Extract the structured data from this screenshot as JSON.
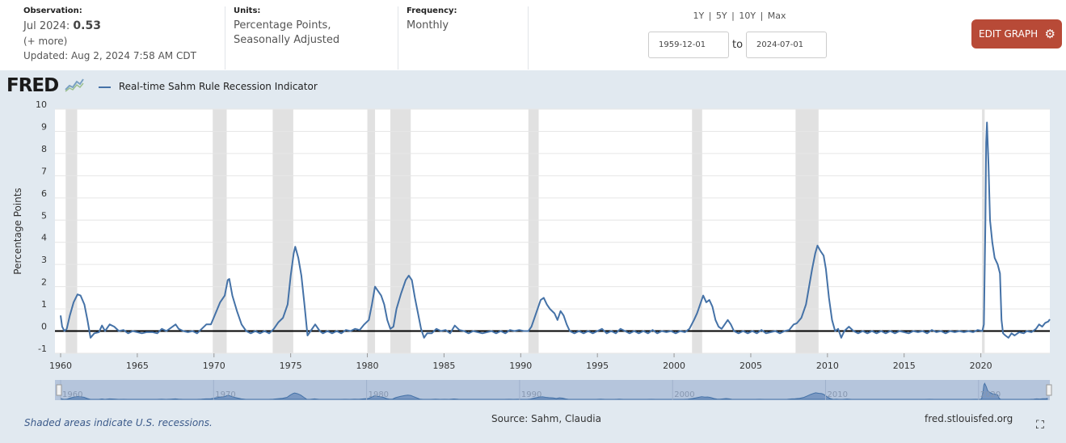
{
  "header": {
    "observation": {
      "label": "Observation:",
      "date": "Jul 2024:",
      "value": "0.53",
      "more": "(+ more)",
      "updated_label": "Updated:",
      "updated_value": "Aug 2, 2024 7:58 AM CDT"
    },
    "units": {
      "label": "Units:",
      "line1": "Percentage Points,",
      "line2": "Seasonally Adjusted"
    },
    "frequency": {
      "label": "Frequency:",
      "value": "Monthly"
    },
    "range_links": [
      "1Y",
      "5Y",
      "10Y",
      "Max"
    ],
    "range_sep": "|",
    "start_date": "1959-12-01",
    "to_label": "to",
    "end_date": "2024-07-01",
    "edit_button": "EDIT GRAPH",
    "edit_icon": "gear-icon"
  },
  "footer": {
    "note": "Shaded areas indicate U.S. recessions.",
    "source": "Source: Sahm, Claudia",
    "site": "fred.stlouisfed.org",
    "fullscreen_icon": "expand-icon"
  },
  "logo": {
    "text": "FRED"
  },
  "chart_data": {
    "type": "line",
    "title": "",
    "ylabel": "Percentage Points",
    "xlabel": "",
    "ylim": [
      -1,
      10
    ],
    "xlim": [
      1960.0,
      2024.5
    ],
    "yticks": [
      "-1",
      "0",
      "1",
      "2",
      "3",
      "4",
      "5",
      "6",
      "7",
      "8",
      "9",
      "10"
    ],
    "xticks": [
      "1960",
      "1965",
      "1970",
      "1975",
      "1980",
      "1985",
      "1990",
      "1995",
      "2000",
      "2005",
      "2010",
      "2015",
      "2020"
    ],
    "navigator_ticks": [
      "1960",
      "1970",
      "1980",
      "1990",
      "2000",
      "2010",
      "2020"
    ],
    "series": [
      {
        "name": "Real-time Sahm Rule Recession Indicator",
        "color": "#4572a7",
        "points": [
          [
            1960.0,
            0.7
          ],
          [
            1960.1,
            0.2
          ],
          [
            1960.25,
            0.0
          ],
          [
            1960.4,
            0.1
          ],
          [
            1960.6,
            0.7
          ],
          [
            1960.85,
            1.3
          ],
          [
            1961.1,
            1.65
          ],
          [
            1961.3,
            1.6
          ],
          [
            1961.55,
            1.2
          ],
          [
            1961.75,
            0.5
          ],
          [
            1961.95,
            -0.3
          ],
          [
            1962.2,
            -0.1
          ],
          [
            1962.5,
            -0.05
          ],
          [
            1962.7,
            0.25
          ],
          [
            1962.9,
            0.0
          ],
          [
            1963.2,
            0.3
          ],
          [
            1963.5,
            0.2
          ],
          [
            1963.8,
            0.0
          ],
          [
            1964.1,
            0.05
          ],
          [
            1964.4,
            -0.1
          ],
          [
            1964.7,
            0.0
          ],
          [
            1965.0,
            -0.05
          ],
          [
            1965.3,
            -0.1
          ],
          [
            1965.6,
            -0.05
          ],
          [
            1966.0,
            -0.05
          ],
          [
            1966.3,
            -0.1
          ],
          [
            1966.6,
            0.1
          ],
          [
            1966.9,
            0.0
          ],
          [
            1967.2,
            0.15
          ],
          [
            1967.5,
            0.3
          ],
          [
            1967.7,
            0.1
          ],
          [
            1968.0,
            0.0
          ],
          [
            1968.3,
            -0.05
          ],
          [
            1968.6,
            0.0
          ],
          [
            1968.9,
            -0.1
          ],
          [
            1969.2,
            0.1
          ],
          [
            1969.5,
            0.3
          ],
          [
            1969.8,
            0.3
          ],
          [
            1970.1,
            0.8
          ],
          [
            1970.4,
            1.3
          ],
          [
            1970.7,
            1.6
          ],
          [
            1970.9,
            2.3
          ],
          [
            1971.0,
            2.35
          ],
          [
            1971.2,
            1.6
          ],
          [
            1971.5,
            0.9
          ],
          [
            1971.8,
            0.3
          ],
          [
            1972.1,
            0.0
          ],
          [
            1972.4,
            -0.1
          ],
          [
            1972.7,
            0.0
          ],
          [
            1973.0,
            -0.1
          ],
          [
            1973.3,
            0.0
          ],
          [
            1973.6,
            -0.1
          ],
          [
            1973.9,
            0.1
          ],
          [
            1974.2,
            0.4
          ],
          [
            1974.5,
            0.6
          ],
          [
            1974.8,
            1.2
          ],
          [
            1975.0,
            2.5
          ],
          [
            1975.2,
            3.5
          ],
          [
            1975.3,
            3.8
          ],
          [
            1975.5,
            3.3
          ],
          [
            1975.7,
            2.5
          ],
          [
            1975.9,
            1.2
          ],
          [
            1976.1,
            -0.2
          ],
          [
            1976.3,
            0.0
          ],
          [
            1976.6,
            0.3
          ],
          [
            1976.9,
            0.0
          ],
          [
            1977.1,
            -0.1
          ],
          [
            1977.4,
            0.0
          ],
          [
            1977.7,
            -0.1
          ],
          [
            1978.0,
            0.0
          ],
          [
            1978.3,
            -0.1
          ],
          [
            1978.6,
            0.05
          ],
          [
            1978.9,
            0.0
          ],
          [
            1979.2,
            0.1
          ],
          [
            1979.5,
            0.05
          ],
          [
            1979.8,
            0.3
          ],
          [
            1980.1,
            0.5
          ],
          [
            1980.3,
            1.2
          ],
          [
            1980.5,
            2.0
          ],
          [
            1980.7,
            1.8
          ],
          [
            1980.9,
            1.6
          ],
          [
            1981.1,
            1.2
          ],
          [
            1981.3,
            0.5
          ],
          [
            1981.5,
            0.1
          ],
          [
            1981.7,
            0.2
          ],
          [
            1981.9,
            1.0
          ],
          [
            1982.2,
            1.7
          ],
          [
            1982.5,
            2.3
          ],
          [
            1982.7,
            2.5
          ],
          [
            1982.9,
            2.3
          ],
          [
            1983.1,
            1.5
          ],
          [
            1983.3,
            0.8
          ],
          [
            1983.5,
            0.1
          ],
          [
            1983.7,
            -0.3
          ],
          [
            1983.9,
            -0.1
          ],
          [
            1984.2,
            -0.1
          ],
          [
            1984.5,
            0.1
          ],
          [
            1984.8,
            0.0
          ],
          [
            1985.1,
            0.05
          ],
          [
            1985.4,
            -0.1
          ],
          [
            1985.7,
            0.25
          ],
          [
            1986.0,
            0.05
          ],
          [
            1986.3,
            0.0
          ],
          [
            1986.6,
            -0.1
          ],
          [
            1986.9,
            0.0
          ],
          [
            1987.2,
            -0.05
          ],
          [
            1987.5,
            -0.1
          ],
          [
            1987.8,
            -0.05
          ],
          [
            1988.1,
            0.0
          ],
          [
            1988.4,
            -0.1
          ],
          [
            1988.7,
            0.0
          ],
          [
            1989.0,
            -0.1
          ],
          [
            1989.3,
            0.05
          ],
          [
            1989.6,
            0.0
          ],
          [
            1989.9,
            0.05
          ],
          [
            1990.2,
            0.0
          ],
          [
            1990.5,
            0.0
          ],
          [
            1990.7,
            0.2
          ],
          [
            1990.9,
            0.6
          ],
          [
            1991.1,
            1.0
          ],
          [
            1991.3,
            1.4
          ],
          [
            1991.5,
            1.5
          ],
          [
            1991.7,
            1.2
          ],
          [
            1991.9,
            1.0
          ],
          [
            1992.2,
            0.8
          ],
          [
            1992.4,
            0.5
          ],
          [
            1992.6,
            0.9
          ],
          [
            1992.8,
            0.7
          ],
          [
            1993.0,
            0.3
          ],
          [
            1993.2,
            0.0
          ],
          [
            1993.5,
            -0.1
          ],
          [
            1993.8,
            0.0
          ],
          [
            1994.1,
            -0.1
          ],
          [
            1994.4,
            0.0
          ],
          [
            1994.7,
            -0.1
          ],
          [
            1995.0,
            0.0
          ],
          [
            1995.3,
            0.1
          ],
          [
            1995.6,
            -0.1
          ],
          [
            1995.9,
            0.0
          ],
          [
            1996.2,
            -0.1
          ],
          [
            1996.5,
            0.1
          ],
          [
            1996.8,
            0.0
          ],
          [
            1997.1,
            -0.1
          ],
          [
            1997.4,
            0.0
          ],
          [
            1997.7,
            -0.1
          ],
          [
            1998.0,
            0.0
          ],
          [
            1998.3,
            -0.1
          ],
          [
            1998.6,
            0.05
          ],
          [
            1998.9,
            -0.1
          ],
          [
            1999.2,
            0.0
          ],
          [
            1999.5,
            -0.05
          ],
          [
            1999.8,
            0.0
          ],
          [
            2000.1,
            -0.1
          ],
          [
            2000.4,
            0.0
          ],
          [
            2000.7,
            -0.05
          ],
          [
            2001.0,
            0.1
          ],
          [
            2001.3,
            0.5
          ],
          [
            2001.5,
            0.8
          ],
          [
            2001.7,
            1.2
          ],
          [
            2001.9,
            1.6
          ],
          [
            2002.1,
            1.3
          ],
          [
            2002.3,
            1.4
          ],
          [
            2002.5,
            1.1
          ],
          [
            2002.7,
            0.5
          ],
          [
            2002.9,
            0.2
          ],
          [
            2003.1,
            0.1
          ],
          [
            2003.3,
            0.3
          ],
          [
            2003.5,
            0.5
          ],
          [
            2003.7,
            0.3
          ],
          [
            2003.9,
            0.0
          ],
          [
            2004.2,
            -0.1
          ],
          [
            2004.5,
            0.0
          ],
          [
            2004.8,
            -0.1
          ],
          [
            2005.1,
            0.0
          ],
          [
            2005.4,
            -0.1
          ],
          [
            2005.7,
            0.05
          ],
          [
            2006.0,
            -0.1
          ],
          [
            2006.3,
            -0.05
          ],
          [
            2006.6,
            0.0
          ],
          [
            2006.9,
            -0.1
          ],
          [
            2007.2,
            0.0
          ],
          [
            2007.5,
            0.05
          ],
          [
            2007.8,
            0.3
          ],
          [
            2008.0,
            0.35
          ],
          [
            2008.3,
            0.6
          ],
          [
            2008.6,
            1.2
          ],
          [
            2008.8,
            2.0
          ],
          [
            2009.0,
            2.8
          ],
          [
            2009.2,
            3.5
          ],
          [
            2009.35,
            3.85
          ],
          [
            2009.55,
            3.6
          ],
          [
            2009.75,
            3.4
          ],
          [
            2009.9,
            2.8
          ],
          [
            2010.1,
            1.5
          ],
          [
            2010.3,
            0.5
          ],
          [
            2010.5,
            0.0
          ],
          [
            2010.7,
            0.1
          ],
          [
            2010.9,
            -0.3
          ],
          [
            2011.1,
            0.0
          ],
          [
            2011.4,
            0.2
          ],
          [
            2011.7,
            0.0
          ],
          [
            2012.0,
            -0.1
          ],
          [
            2012.3,
            0.0
          ],
          [
            2012.6,
            -0.1
          ],
          [
            2012.9,
            0.0
          ],
          [
            2013.2,
            -0.1
          ],
          [
            2013.5,
            0.0
          ],
          [
            2013.8,
            -0.1
          ],
          [
            2014.1,
            0.0
          ],
          [
            2014.4,
            -0.1
          ],
          [
            2014.7,
            0.0
          ],
          [
            2015.0,
            -0.05
          ],
          [
            2015.3,
            -0.1
          ],
          [
            2015.6,
            0.0
          ],
          [
            2015.9,
            -0.05
          ],
          [
            2016.2,
            0.0
          ],
          [
            2016.5,
            -0.1
          ],
          [
            2016.8,
            0.05
          ],
          [
            2017.1,
            -0.05
          ],
          [
            2017.4,
            0.0
          ],
          [
            2017.7,
            -0.1
          ],
          [
            2018.0,
            0.0
          ],
          [
            2018.3,
            -0.05
          ],
          [
            2018.6,
            0.0
          ],
          [
            2018.9,
            -0.05
          ],
          [
            2019.2,
            0.0
          ],
          [
            2019.5,
            -0.05
          ],
          [
            2019.8,
            0.05
          ],
          [
            2020.1,
            0.0
          ],
          [
            2020.2,
            0.3
          ],
          [
            2020.3,
            5.0
          ],
          [
            2020.35,
            8.5
          ],
          [
            2020.4,
            9.4
          ],
          [
            2020.5,
            7.5
          ],
          [
            2020.6,
            5.0
          ],
          [
            2020.75,
            4.0
          ],
          [
            2020.9,
            3.3
          ],
          [
            2021.1,
            3.0
          ],
          [
            2021.25,
            2.6
          ],
          [
            2021.35,
            0.5
          ],
          [
            2021.45,
            -0.1
          ],
          [
            2021.6,
            -0.2
          ],
          [
            2021.8,
            -0.3
          ],
          [
            2022.0,
            -0.1
          ],
          [
            2022.2,
            -0.2
          ],
          [
            2022.5,
            -0.05
          ],
          [
            2022.8,
            -0.1
          ],
          [
            2023.0,
            0.0
          ],
          [
            2023.3,
            -0.05
          ],
          [
            2023.6,
            0.1
          ],
          [
            2023.8,
            0.3
          ],
          [
            2024.0,
            0.2
          ],
          [
            2024.2,
            0.37
          ],
          [
            2024.4,
            0.43
          ],
          [
            2024.5,
            0.53
          ]
        ]
      }
    ],
    "recessions": [
      [
        1960.33,
        1961.08
      ],
      [
        1969.92,
        1970.83
      ],
      [
        1973.83,
        1975.17
      ],
      [
        1980.0,
        1980.5
      ],
      [
        1981.5,
        1982.83
      ],
      [
        1990.5,
        1991.17
      ],
      [
        2001.17,
        2001.83
      ],
      [
        2007.92,
        2009.42
      ],
      [
        2020.08,
        2020.25
      ]
    ]
  }
}
